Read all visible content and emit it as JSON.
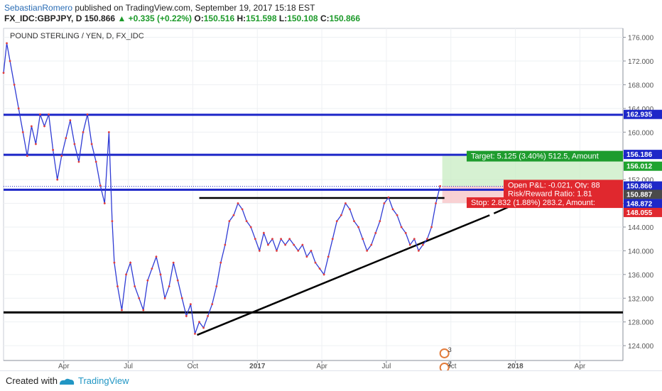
{
  "header": {
    "author": "SebastianRomero",
    "published": "published on TradingView.com, September 19, 2017 15:18 EST",
    "symbol": "FX_IDC:GBPJPY, D",
    "price": "150.866",
    "change": "▲ +0.335 (+0.22%)",
    "open_label": "O:",
    "open": "150.516",
    "high_label": "H:",
    "high": "151.598",
    "low_label": "L:",
    "low": "150.108",
    "close_label": "C:",
    "close": "150.866"
  },
  "footer": {
    "created": "Created with",
    "brand": "TradingView"
  },
  "chart_data": {
    "type": "line",
    "title": "POUND STERLING / YEN, D, FX_IDC",
    "ylim": [
      121.5,
      177.5
    ],
    "y_ticks": [
      "124.000",
      "128.000",
      "132.000",
      "136.000",
      "140.000",
      "144.000",
      "148.000",
      "152.000",
      "156.000",
      "160.000",
      "164.000",
      "168.000",
      "172.000",
      "176.000"
    ],
    "x_ticks": [
      {
        "label": "Apr",
        "t": 3
      },
      {
        "label": "Jul",
        "t": 6
      },
      {
        "label": "Oct",
        "t": 9
      },
      {
        "label": "2017",
        "t": 12
      },
      {
        "label": "Apr",
        "t": 15
      },
      {
        "label": "Jul",
        "t": 18
      },
      {
        "label": "Oct",
        "t": 21
      },
      {
        "label": "2018",
        "t": 24
      },
      {
        "label": "Apr",
        "t": 27
      }
    ],
    "xlim": [
      0.2,
      29
    ],
    "grid": true,
    "series": [
      {
        "values": [
          [
            0.2,
            170
          ],
          [
            0.35,
            175
          ],
          [
            0.5,
            172
          ],
          [
            0.7,
            168
          ],
          [
            0.9,
            164
          ],
          [
            1.1,
            160
          ],
          [
            1.3,
            156
          ],
          [
            1.5,
            161
          ],
          [
            1.7,
            158
          ],
          [
            1.9,
            163
          ],
          [
            2.1,
            161
          ],
          [
            2.3,
            163
          ],
          [
            2.5,
            157
          ],
          [
            2.7,
            152
          ],
          [
            2.9,
            156
          ],
          [
            3.1,
            159
          ],
          [
            3.3,
            162
          ],
          [
            3.5,
            158
          ],
          [
            3.7,
            155
          ],
          [
            3.9,
            160
          ],
          [
            4.1,
            163
          ],
          [
            4.3,
            158
          ],
          [
            4.5,
            155
          ],
          [
            4.7,
            151
          ],
          [
            4.9,
            148
          ],
          [
            5.1,
            160
          ],
          [
            5.25,
            145
          ],
          [
            5.35,
            138
          ],
          [
            5.5,
            134
          ],
          [
            5.7,
            130
          ],
          [
            5.9,
            136
          ],
          [
            6.1,
            138
          ],
          [
            6.3,
            134
          ],
          [
            6.5,
            132
          ],
          [
            6.7,
            130
          ],
          [
            6.9,
            135
          ],
          [
            7.1,
            137
          ],
          [
            7.3,
            139
          ],
          [
            7.5,
            136
          ],
          [
            7.7,
            132
          ],
          [
            7.9,
            134
          ],
          [
            8.1,
            138
          ],
          [
            8.3,
            135
          ],
          [
            8.5,
            132
          ],
          [
            8.7,
            129
          ],
          [
            8.9,
            131
          ],
          [
            9.1,
            126
          ],
          [
            9.3,
            128
          ],
          [
            9.5,
            127
          ],
          [
            9.7,
            129
          ],
          [
            9.9,
            131
          ],
          [
            10.1,
            134
          ],
          [
            10.3,
            138
          ],
          [
            10.5,
            141
          ],
          [
            10.7,
            145
          ],
          [
            10.9,
            146
          ],
          [
            11.1,
            148
          ],
          [
            11.3,
            147
          ],
          [
            11.5,
            145
          ],
          [
            11.7,
            144
          ],
          [
            11.9,
            142
          ],
          [
            12.1,
            140
          ],
          [
            12.3,
            143
          ],
          [
            12.5,
            141
          ],
          [
            12.7,
            142
          ],
          [
            12.9,
            140
          ],
          [
            13.1,
            142
          ],
          [
            13.3,
            141
          ],
          [
            13.5,
            142
          ],
          [
            13.7,
            141
          ],
          [
            13.9,
            140
          ],
          [
            14.1,
            141
          ],
          [
            14.3,
            139
          ],
          [
            14.5,
            140
          ],
          [
            14.7,
            138
          ],
          [
            14.9,
            137
          ],
          [
            15.1,
            136
          ],
          [
            15.3,
            139
          ],
          [
            15.5,
            142
          ],
          [
            15.7,
            145
          ],
          [
            15.9,
            146
          ],
          [
            16.1,
            148
          ],
          [
            16.3,
            147
          ],
          [
            16.5,
            145
          ],
          [
            16.7,
            144
          ],
          [
            16.9,
            142
          ],
          [
            17.1,
            140
          ],
          [
            17.3,
            141
          ],
          [
            17.5,
            143
          ],
          [
            17.7,
            145
          ],
          [
            17.9,
            148
          ],
          [
            18.1,
            149
          ],
          [
            18.3,
            147
          ],
          [
            18.5,
            146
          ],
          [
            18.7,
            144
          ],
          [
            18.9,
            143
          ],
          [
            19.1,
            141
          ],
          [
            19.3,
            142
          ],
          [
            19.5,
            140
          ],
          [
            19.7,
            141
          ],
          [
            19.9,
            142
          ],
          [
            20.1,
            144
          ],
          [
            20.3,
            148
          ],
          [
            20.5,
            150.9
          ]
        ]
      }
    ],
    "lines": [
      {
        "kind": "horizontal",
        "color": "#1d27c8",
        "y": 162.935
      },
      {
        "kind": "horizontal",
        "color": "#1d27c8",
        "y": 156.186
      },
      {
        "kind": "horizontal",
        "color": "#1d27c8",
        "y": 150.3
      },
      {
        "kind": "horizontal",
        "color": "#000000",
        "y": 129.6
      },
      {
        "kind": "segment",
        "color": "#000000",
        "from": [
          9.3,
          148.9
        ],
        "to": [
          20.7,
          148.9
        ]
      },
      {
        "kind": "segment",
        "color": "#000000",
        "from": [
          9.2,
          125.8
        ],
        "to": [
          22.8,
          146.0
        ]
      },
      {
        "kind": "segment",
        "color": "#000000",
        "from": [
          23.0,
          146.3
        ],
        "to": [
          25.0,
          149.5
        ]
      }
    ],
    "position": {
      "entry": 150.887,
      "target": 156.012,
      "stop": 148.055,
      "t_start": 20.6,
      "t_end": 29,
      "target_label": "Target: 5.125 (3.40%) 512.5, Amount",
      "pnl_label": "Open P&L: -0.021, Qty: 88",
      "rr_label": "Risk/Reward Ratio: 1.81",
      "stop_label": "Stop: 2.832 (1.88%) 283.2, Amount:"
    },
    "price_labels": [
      {
        "text": "162.935",
        "y": 162.935,
        "color": "#1d27c8"
      },
      {
        "text": "156.186",
        "y": 156.186,
        "color": "#1d27c8"
      },
      {
        "text": "156.012",
        "y": 154.2,
        "color": "#1fa32f"
      },
      {
        "text": "150.866",
        "y": 150.866,
        "color": "#1d27c8"
      },
      {
        "text": "150.887",
        "y": 149.45,
        "color": "#4a4a4a"
      },
      {
        "text": "148.872",
        "y": 147.9,
        "color": "#1d27c8"
      },
      {
        "text": "148.055",
        "y": 146.4,
        "color": "#e0282e"
      }
    ],
    "events": [
      {
        "t": 20.7,
        "y": 122.7,
        "label": "3"
      },
      {
        "t": 20.7,
        "y": 120.3,
        "label": "2"
      }
    ]
  }
}
